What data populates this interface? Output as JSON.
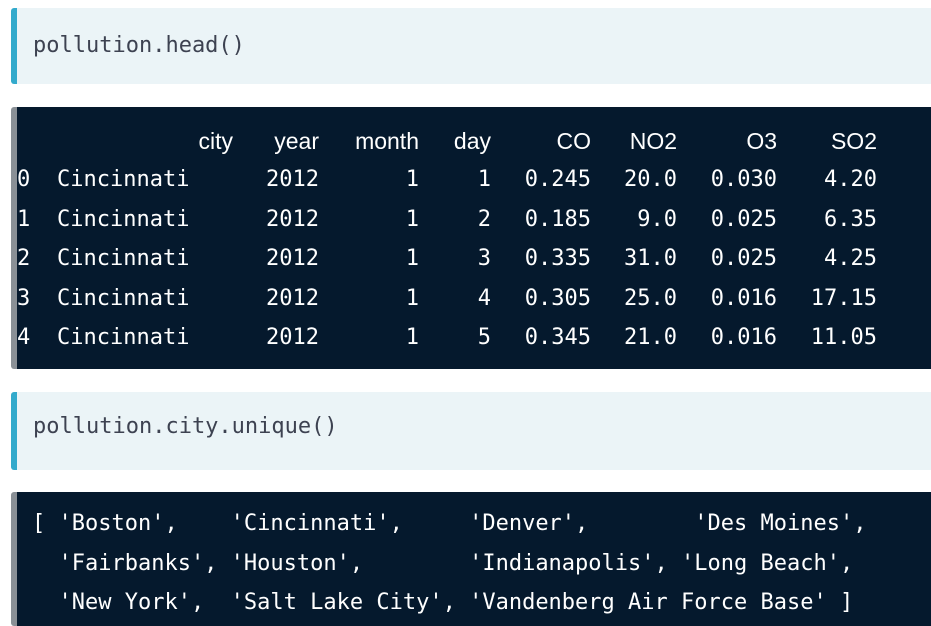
{
  "cells": [
    {
      "code": "pollution.head()",
      "output_table": {
        "columns": [
          "",
          "city",
          "year",
          "month",
          "day",
          "CO",
          "NO2",
          "O3",
          "SO2"
        ],
        "rows": [
          [
            "0",
            "Cincinnati",
            "2012",
            "1",
            "1",
            "0.245",
            "20.0",
            "0.030",
            "4.20"
          ],
          [
            "1",
            "Cincinnati",
            "2012",
            "1",
            "2",
            "0.185",
            "9.0",
            "0.025",
            "6.35"
          ],
          [
            "2",
            "Cincinnati",
            "2012",
            "1",
            "3",
            "0.335",
            "31.0",
            "0.025",
            "4.25"
          ],
          [
            "3",
            "Cincinnati",
            "2012",
            "1",
            "4",
            "0.305",
            "25.0",
            "0.016",
            "17.15"
          ],
          [
            "4",
            "Cincinnati",
            "2012",
            "1",
            "5",
            "0.345",
            "21.0",
            "0.016",
            "11.05"
          ]
        ]
      }
    },
    {
      "code": "pollution.city.unique()",
      "output_lines": [
        "[ 'Boston',    'Cincinnati',     'Denver',        'Des Moines',",
        "  'Fairbanks', 'Houston',        'Indianapolis', 'Long Beach',",
        "  'New York',  'Salt Lake City', 'Vandenberg Air Force Base' ]"
      ]
    }
  ]
}
